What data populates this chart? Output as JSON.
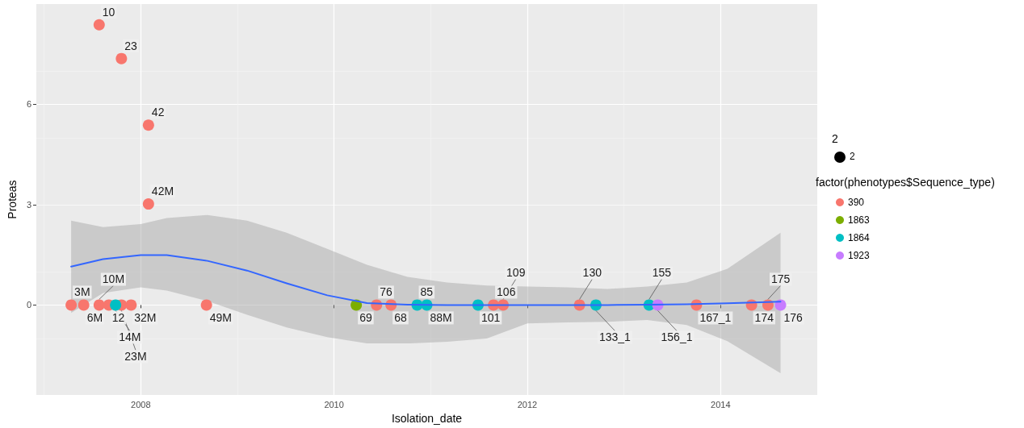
{
  "chart_data": {
    "type": "scatter",
    "xlabel": "Isolation_date",
    "ylabel": "Proteas",
    "legend_title": "factor(phenotypes$Sequence_type)",
    "legend": "right",
    "grid": true,
    "marker": "circle",
    "xlim": [
      2006.92,
      2015.0
    ],
    "xticks": [
      2008,
      2010,
      2012,
      2014
    ],
    "ylim": [
      -2.69,
      9.0
    ],
    "yticks": [
      0,
      3,
      6
    ],
    "series": [
      {
        "name": "390",
        "color": "#f8766d",
        "x": [
          2007.28,
          2007.41,
          2007.57,
          2007.57,
          2007.67,
          2007.8,
          2007.8,
          2007.9,
          2008.08,
          2008.08,
          2008.68,
          2010.44,
          2010.59,
          2011.65,
          2011.75,
          2012.54,
          2013.75,
          2014.32,
          2014.49
        ],
        "values": [
          0,
          0,
          0,
          8.38,
          0,
          0,
          7.37,
          0,
          5.38,
          3.02,
          0,
          0,
          0,
          0,
          0,
          0,
          0,
          0,
          0
        ]
      },
      {
        "name": "1863",
        "color": "#7cae00",
        "x": [
          2010.23
        ],
        "values": [
          0
        ]
      },
      {
        "name": "1864",
        "color": "#00bfc4",
        "x": [
          2007.74,
          2010.86,
          2010.96,
          2011.49,
          2012.71,
          2013.26
        ],
        "values": [
          0,
          0,
          0,
          0,
          0,
          0
        ]
      },
      {
        "name": "1923",
        "color": "#c77cff",
        "x": [
          2013.35,
          2014.62
        ],
        "values": [
          0,
          0
        ]
      },
      {
        "type": "line",
        "marker": "none",
        "color": "#3366ff",
        "x": [
          2007.28,
          2007.61,
          2008.0,
          2008.27,
          2008.69,
          2009.1,
          2009.51,
          2009.93,
          2010.34,
          2010.76,
          2011.17,
          2011.58,
          2012.0,
          2012.41,
          2012.83,
          2013.24,
          2013.65,
          2014.07,
          2014.62
        ],
        "values": [
          1.15,
          1.37,
          1.49,
          1.49,
          1.32,
          1.03,
          0.65,
          0.29,
          0.06,
          0.01,
          0,
          0,
          0,
          0,
          0,
          0.01,
          0.02,
          0.05,
          0.1
        ],
        "upper": [
          2.52,
          2.33,
          2.42,
          2.6,
          2.69,
          2.52,
          2.16,
          1.68,
          1.2,
          0.84,
          0.67,
          0.58,
          0.55,
          0.53,
          0.48,
          0.55,
          0.67,
          1.08,
          2.16
        ],
        "lower": [
          -0.24,
          0.36,
          0.53,
          0.43,
          0.12,
          -0.29,
          -0.67,
          -0.96,
          -1.15,
          -1.15,
          -1.1,
          -1.0,
          -0.55,
          -0.52,
          -0.5,
          -0.45,
          -0.6,
          -1.08,
          -2.04
        ]
      }
    ],
    "annotations": [
      "2",
      "2",
      {
        "text": "10",
        "x": 2007.57,
        "y": 8.38
      },
      {
        "text": "23",
        "x": 2007.8,
        "y": 7.37
      },
      {
        "text": "42",
        "x": 2008.08,
        "y": 5.38
      },
      {
        "text": "42M",
        "x": 2008.08,
        "y": 3.02
      },
      {
        "text": "3M",
        "x": 2007.28,
        "y": 0
      },
      {
        "text": "6M",
        "x": 2007.41,
        "y": 0
      },
      {
        "text": "10M",
        "x": 2007.57,
        "y": 0
      },
      {
        "text": "12",
        "x": 2007.67,
        "y": 0
      },
      {
        "text": "14M",
        "x": 2007.74,
        "y": 0
      },
      {
        "text": "23M",
        "x": 2007.8,
        "y": 0
      },
      {
        "text": "32M",
        "x": 2007.9,
        "y": 0
      },
      {
        "text": "49M",
        "x": 2008.68,
        "y": 0
      },
      {
        "text": "69",
        "x": 2010.23,
        "y": 0
      },
      {
        "text": "76",
        "x": 2010.44,
        "y": 0
      },
      {
        "text": "68",
        "x": 2010.59,
        "y": 0
      },
      {
        "text": "85",
        "x": 2010.86,
        "y": 0
      },
      {
        "text": "88M",
        "x": 2010.96,
        "y": 0
      },
      {
        "text": "101",
        "x": 2011.49,
        "y": 0
      },
      {
        "text": "106",
        "x": 2011.65,
        "y": 0
      },
      {
        "text": "109",
        "x": 2011.75,
        "y": 0
      },
      {
        "text": "130",
        "x": 2012.54,
        "y": 0
      },
      {
        "text": "133_1",
        "x": 2012.71,
        "y": 0
      },
      {
        "text": "155",
        "x": 2013.26,
        "y": 0
      },
      {
        "text": "156_1",
        "x": 2013.35,
        "y": 0
      },
      {
        "text": "167_1",
        "x": 2013.75,
        "y": 0
      },
      {
        "text": "174",
        "x": 2014.32,
        "y": 0
      },
      {
        "text": "175",
        "x": 2014.49,
        "y": 0
      },
      {
        "text": "176",
        "x": 2014.62,
        "y": 0
      }
    ]
  }
}
